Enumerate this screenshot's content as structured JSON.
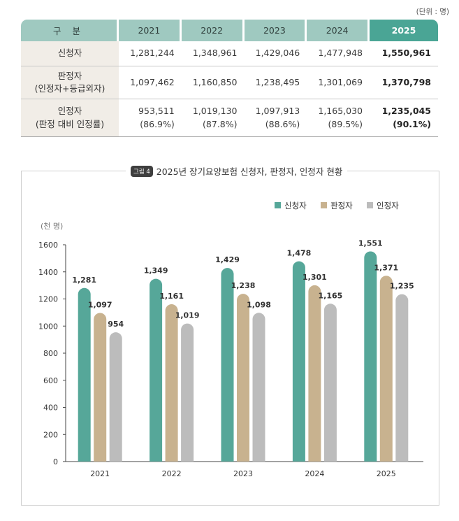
{
  "unit_note": "(단위 : 명)",
  "table": {
    "headers": [
      "구 분",
      "2021",
      "2022",
      "2023",
      "2024",
      "2025"
    ],
    "rows": [
      {
        "label": [
          "신청자"
        ],
        "cells": [
          [
            "1,281,244"
          ],
          [
            "1,348,961"
          ],
          [
            "1,429,046"
          ],
          [
            "1,477,948"
          ],
          [
            "1,550,961"
          ]
        ]
      },
      {
        "label": [
          "판정자",
          "(인정자+등급외자)"
        ],
        "cells": [
          [
            "1,097,462"
          ],
          [
            "1,160,850"
          ],
          [
            "1,238,495"
          ],
          [
            "1,301,069"
          ],
          [
            "1,370,798"
          ]
        ]
      },
      {
        "label": [
          "인정자",
          "(판정 대비 인정률)"
        ],
        "cells": [
          [
            "953,511",
            "(86.9%)"
          ],
          [
            "1,019,130",
            "(87.8%)"
          ],
          [
            "1,097,913",
            "(88.6%)"
          ],
          [
            "1,165,030",
            "(89.5%)"
          ],
          [
            "1,235,045",
            "(90.1%)"
          ]
        ]
      }
    ]
  },
  "figure_tag": "그림 4",
  "chart_data": {
    "type": "bar",
    "title": "2025년 장기요양보험 신청자, 판정자, 인정자 현황",
    "ylabel": "(천 명)",
    "xlabel": "",
    "categories": [
      "2021",
      "2022",
      "2023",
      "2024",
      "2025"
    ],
    "series": [
      {
        "name": "신청자",
        "color": "#56a799",
        "values": [
          1281,
          1349,
          1429,
          1478,
          1551
        ],
        "labels": [
          "1,281",
          "1,349",
          "1,429",
          "1,478",
          "1,551"
        ]
      },
      {
        "name": "판정자",
        "color": "#c8b28f",
        "values": [
          1097,
          1161,
          1238,
          1301,
          1371
        ],
        "labels": [
          "1,097",
          "1,161",
          "1,238",
          "1,301",
          "1,371"
        ]
      },
      {
        "name": "인정자",
        "color": "#bcbcbc",
        "values": [
          954,
          1019,
          1098,
          1165,
          1235
        ],
        "labels": [
          "954",
          "1,019",
          "1,098",
          "1,165",
          "1,235"
        ]
      }
    ],
    "ylim": [
      0,
      1600
    ],
    "yticks": [
      0,
      200,
      400,
      600,
      800,
      1000,
      1200,
      1400,
      1600
    ],
    "grid": false,
    "legend_position": "top-right"
  }
}
